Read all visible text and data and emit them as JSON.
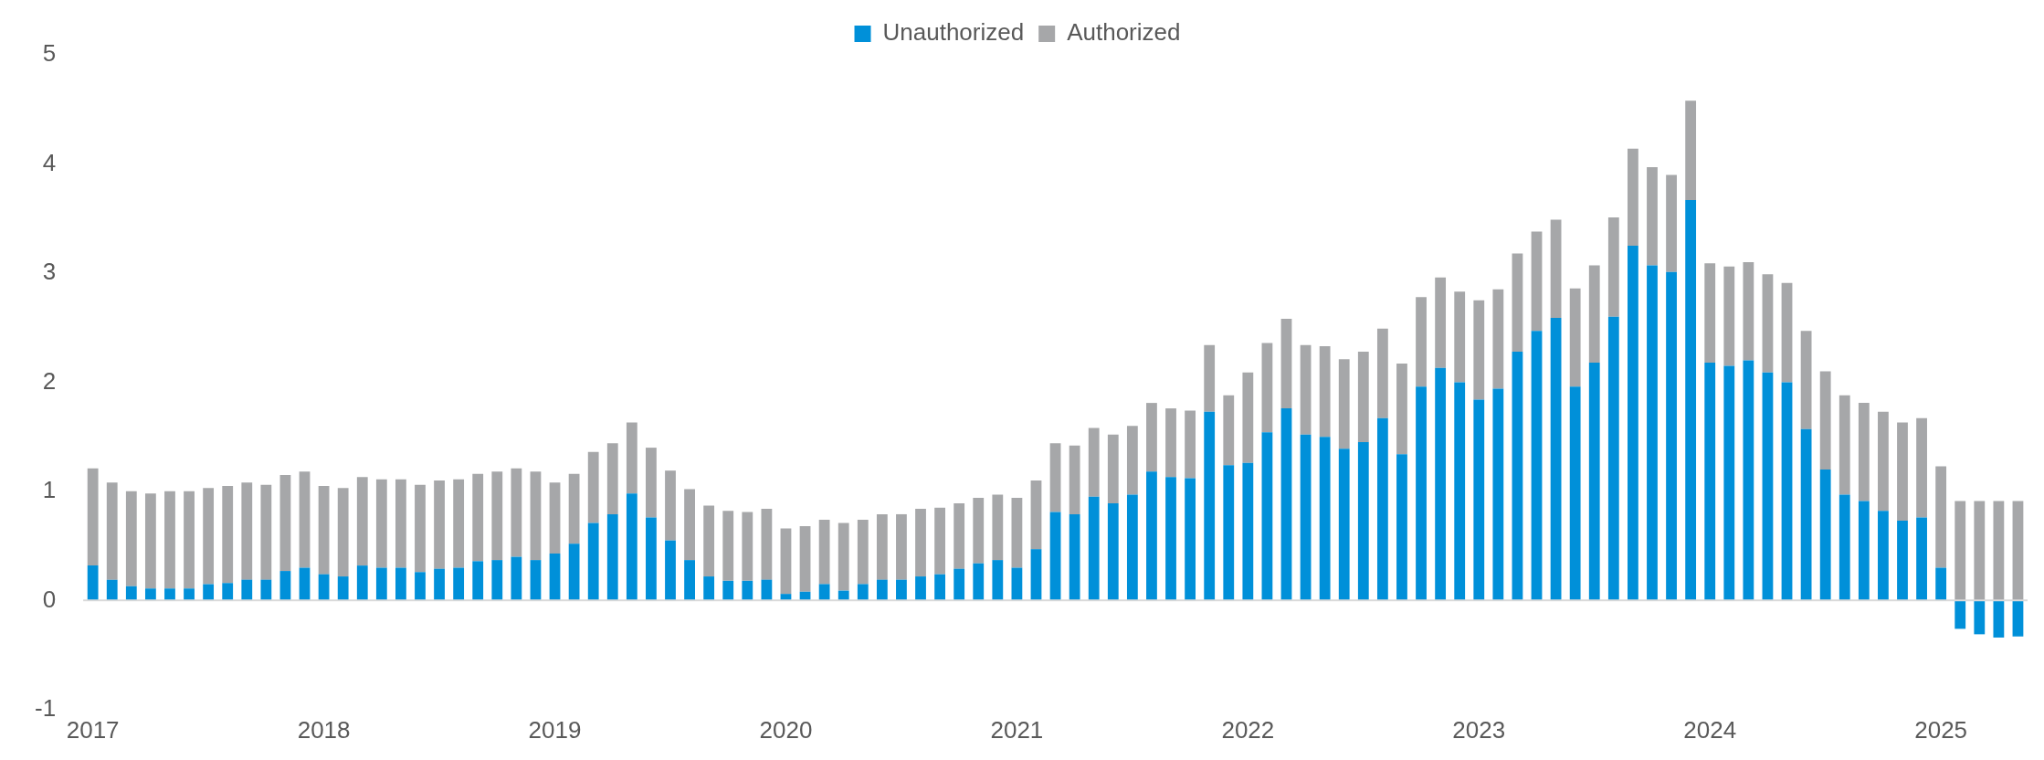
{
  "chart_data": {
    "type": "bar",
    "stacked": true,
    "legend": "top",
    "grid": false,
    "categories": [
      "2017",
      null,
      null,
      null,
      null,
      null,
      null,
      null,
      null,
      null,
      null,
      null,
      "2018",
      null,
      null,
      null,
      null,
      null,
      null,
      null,
      null,
      null,
      null,
      null,
      "2019",
      null,
      null,
      null,
      null,
      null,
      null,
      null,
      null,
      null,
      null,
      null,
      "2020",
      null,
      null,
      null,
      null,
      null,
      null,
      null,
      null,
      null,
      null,
      null,
      "2021",
      null,
      null,
      null,
      null,
      null,
      null,
      null,
      null,
      null,
      null,
      null,
      "2022",
      null,
      null,
      null,
      null,
      null,
      null,
      null,
      null,
      null,
      null,
      null,
      "2023",
      null,
      null,
      null,
      null,
      null,
      null,
      null,
      null,
      null,
      null,
      null,
      "2024",
      null,
      null,
      null,
      null,
      null,
      null,
      null,
      null,
      null,
      null,
      null,
      "2025",
      null,
      null,
      null,
      null
    ],
    "ylim": [
      -1,
      5
    ],
    "ref_lines": [
      {
        "axis": "y",
        "value": 0,
        "color": "#d9d9d9"
      }
    ],
    "yticks": [
      -1,
      0,
      1,
      2,
      3,
      4,
      5
    ],
    "series": [
      {
        "name": "Unauthorized",
        "color": "#0090d9",
        "values": [
          0.32,
          0.19,
          0.13,
          0.11,
          0.11,
          0.11,
          0.15,
          0.16,
          0.19,
          0.19,
          0.27,
          0.3,
          0.24,
          0.22,
          0.32,
          0.3,
          0.3,
          0.26,
          0.29,
          0.3,
          0.36,
          0.37,
          0.4,
          0.37,
          0.43,
          0.52,
          0.71,
          0.79,
          0.98,
          0.76,
          0.55,
          0.37,
          0.22,
          0.18,
          0.18,
          0.19,
          0.06,
          0.08,
          0.15,
          0.09,
          0.15,
          0.19,
          0.19,
          0.22,
          0.24,
          0.29,
          0.34,
          0.37,
          0.3,
          0.47,
          0.81,
          0.79,
          0.95,
          0.89,
          0.97,
          1.18,
          1.13,
          1.12,
          1.73,
          1.24,
          1.26,
          1.54,
          1.76,
          1.52,
          1.5,
          1.39,
          1.45,
          1.67,
          1.34,
          1.96,
          2.13,
          2.0,
          1.84,
          1.94,
          2.28,
          2.47,
          2.59,
          1.96,
          2.18,
          2.6,
          3.25,
          3.07,
          3.01,
          3.67,
          2.18,
          2.15,
          2.2,
          2.09,
          2.0,
          1.57,
          1.2,
          0.97,
          0.91,
          0.82,
          0.73,
          0.76,
          0.3,
          -0.26,
          -0.31,
          -0.34,
          -0.33
        ]
      },
      {
        "name": "Authorized",
        "color": "#a6a7a9",
        "values": [
          0.89,
          0.89,
          0.87,
          0.87,
          0.89,
          0.89,
          0.88,
          0.89,
          0.89,
          0.87,
          0.88,
          0.88,
          0.81,
          0.81,
          0.81,
          0.81,
          0.81,
          0.8,
          0.81,
          0.81,
          0.8,
          0.81,
          0.81,
          0.81,
          0.65,
          0.64,
          0.65,
          0.65,
          0.65,
          0.64,
          0.64,
          0.65,
          0.65,
          0.64,
          0.63,
          0.65,
          0.6,
          0.6,
          0.59,
          0.62,
          0.59,
          0.6,
          0.6,
          0.62,
          0.61,
          0.6,
          0.6,
          0.6,
          0.64,
          0.63,
          0.63,
          0.63,
          0.63,
          0.63,
          0.63,
          0.63,
          0.63,
          0.62,
          0.61,
          0.64,
          0.83,
          0.82,
          0.82,
          0.82,
          0.83,
          0.82,
          0.83,
          0.82,
          0.83,
          0.82,
          0.83,
          0.83,
          0.91,
          0.91,
          0.9,
          0.91,
          0.9,
          0.9,
          0.89,
          0.91,
          0.89,
          0.9,
          0.89,
          0.91,
          0.91,
          0.91,
          0.9,
          0.9,
          0.91,
          0.9,
          0.9,
          0.91,
          0.9,
          0.91,
          0.9,
          0.91,
          0.93,
          0.91,
          0.91,
          0.91,
          0.91
        ]
      }
    ]
  }
}
